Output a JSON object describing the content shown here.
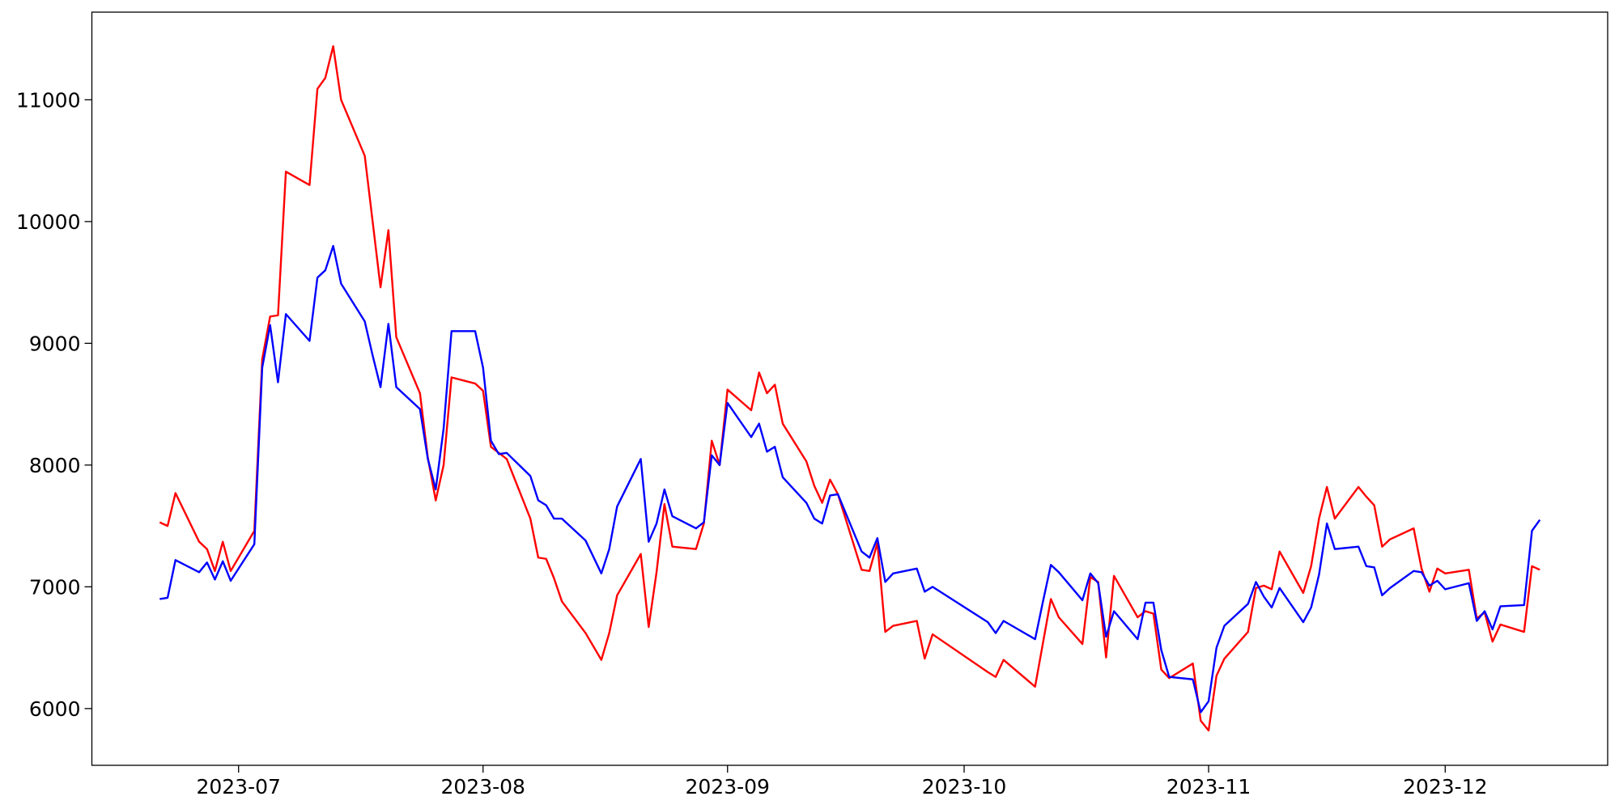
{
  "chart_data": {
    "type": "line",
    "x": [
      -10,
      -9,
      -8,
      -5,
      -4,
      -3,
      -2,
      -1,
      2,
      3,
      4,
      5,
      6,
      9,
      10,
      11,
      12,
      13,
      16,
      17,
      18,
      19,
      20,
      23,
      24,
      25,
      26,
      27,
      30,
      31,
      32,
      33,
      34,
      37,
      38,
      39,
      40,
      41,
      44,
      46,
      47,
      48,
      51,
      52,
      53,
      54,
      55,
      58,
      59,
      60,
      61,
      62,
      65,
      66,
      67,
      68,
      69,
      72,
      73,
      74,
      75,
      76,
      79,
      80,
      81,
      82,
      83,
      86,
      87,
      88,
      95,
      96,
      97,
      101,
      102,
      103,
      104,
      107,
      108,
      109,
      110,
      111,
      114,
      115,
      116,
      117,
      118,
      121,
      122,
      123,
      124,
      125,
      128,
      129,
      130,
      131,
      132,
      135,
      136,
      137,
      138,
      139,
      142,
      143,
      144,
      145,
      146,
      149,
      150,
      151,
      152,
      153,
      156,
      157,
      158,
      159,
      160,
      163,
      164,
      165
    ],
    "series": [
      {
        "color": "#ff0000",
        "values": [
          7530,
          7500,
          7770,
          7370,
          7310,
          7130,
          7370,
          7130,
          7460,
          8870,
          9220,
          9230,
          10410,
          10300,
          11090,
          11180,
          11440,
          11000,
          10540,
          10000,
          9460,
          9930,
          9050,
          8590,
          8060,
          7710,
          8000,
          8720,
          8670,
          8610,
          8150,
          8100,
          8050,
          7560,
          7240,
          7230,
          7070,
          6880,
          6620,
          6400,
          6620,
          6930,
          7270,
          6670,
          7120,
          7680,
          7330,
          7310,
          7520,
          8200,
          8000,
          8620,
          8450,
          8760,
          8590,
          8660,
          8340,
          8030,
          7830,
          7690,
          7880,
          7760,
          7140,
          7130,
          7360,
          6630,
          6680,
          6720,
          6410,
          6610,
          6300,
          6260,
          6400,
          6180,
          6540,
          6900,
          6750,
          6530,
          7080,
          7040,
          6420,
          7090,
          6750,
          6800,
          6780,
          6320,
          6250,
          6370,
          5900,
          5820,
          6270,
          6410,
          6630,
          6990,
          7010,
          6980,
          7290,
          6950,
          7170,
          7560,
          7820,
          7560,
          7820,
          7740,
          7670,
          7330,
          7390,
          7480,
          7150,
          6960,
          7150,
          7110,
          7140,
          6740,
          6790,
          6550,
          6690,
          6630,
          7170,
          7140
        ]
      },
      {
        "color": "#0000ff",
        "values": [
          6900,
          6910,
          7220,
          7120,
          7200,
          7060,
          7210,
          7050,
          7350,
          8800,
          9150,
          8680,
          9240,
          9020,
          9540,
          9600,
          9800,
          9490,
          9180,
          8900,
          8640,
          9160,
          8640,
          8460,
          8050,
          7800,
          8300,
          9100,
          9100,
          8800,
          8200,
          8090,
          8100,
          7910,
          7710,
          7670,
          7560,
          7560,
          7380,
          7110,
          7310,
          7660,
          8050,
          7370,
          7520,
          7800,
          7580,
          7480,
          7530,
          8080,
          8000,
          8510,
          8230,
          8340,
          8110,
          8150,
          7900,
          7690,
          7560,
          7520,
          7750,
          7760,
          7290,
          7240,
          7400,
          7040,
          7110,
          7150,
          6960,
          7000,
          6710,
          6620,
          6720,
          6570,
          6880,
          7180,
          7120,
          6890,
          7110,
          7030,
          6590,
          6800,
          6570,
          6870,
          6870,
          6480,
          6260,
          6240,
          5970,
          6060,
          6500,
          6680,
          6860,
          7040,
          6920,
          6830,
          6990,
          6710,
          6830,
          7100,
          7520,
          7310,
          7330,
          7170,
          7160,
          6930,
          6990,
          7130,
          7120,
          7010,
          7050,
          6980,
          7030,
          6720,
          6800,
          6650,
          6840,
          6850,
          7460,
          7550
        ]
      }
    ],
    "xlim": [
      -18.6,
      173.6
    ],
    "xticks": [
      {
        "value": 0,
        "label": "2023-07"
      },
      {
        "value": 31,
        "label": "2023-08"
      },
      {
        "value": 62,
        "label": "2023-09"
      },
      {
        "value": 92,
        "label": "2023-10"
      },
      {
        "value": 123,
        "label": "2023-11"
      },
      {
        "value": 153,
        "label": "2023-12"
      }
    ],
    "ylim": [
      5534,
      11720
    ],
    "yticks": [
      6000,
      7000,
      8000,
      9000,
      10000,
      11000
    ],
    "grid": false
  }
}
